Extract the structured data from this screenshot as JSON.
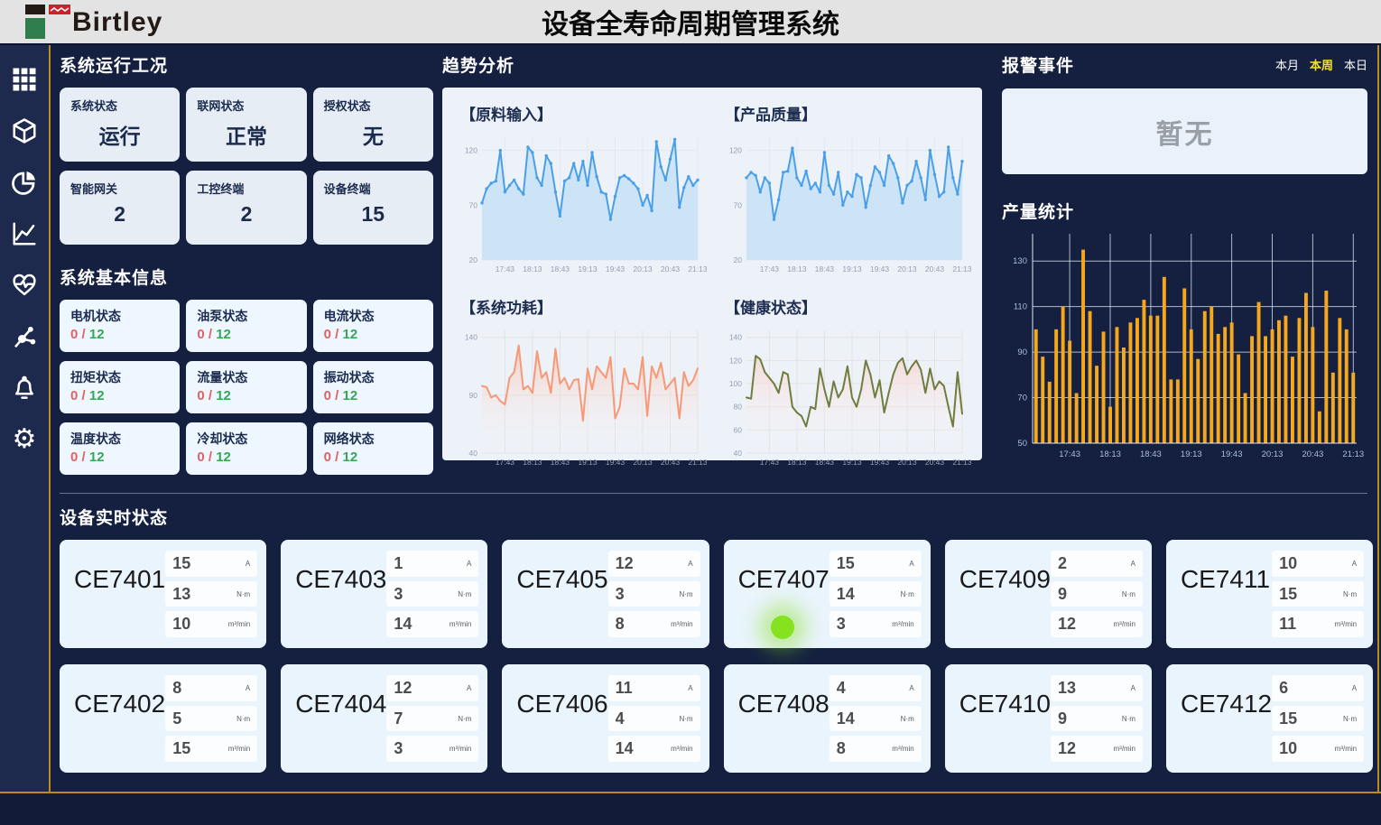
{
  "header": {
    "logo_text": "Birtley",
    "title": "设备全寿命周期管理系统"
  },
  "sidebar": {
    "icons": [
      "grid",
      "cube",
      "pie-chart",
      "line-chart",
      "health",
      "molecule",
      "bell",
      "gear"
    ]
  },
  "system_status": {
    "title": "系统运行工况",
    "cards": [
      {
        "label": "系统状态",
        "value": "运行"
      },
      {
        "label": "联网状态",
        "value": "正常"
      },
      {
        "label": "授权状态",
        "value": "无"
      },
      {
        "label": "智能网关",
        "value": "2"
      },
      {
        "label": "工控终端",
        "value": "2"
      },
      {
        "label": "设备终端",
        "value": "15"
      }
    ]
  },
  "system_info": {
    "title": "系统基本信息",
    "cards": [
      {
        "label": "电机状态",
        "current": "0",
        "separator": "/",
        "total": "12"
      },
      {
        "label": "油泵状态",
        "current": "0",
        "separator": "/",
        "total": "12"
      },
      {
        "label": "电流状态",
        "current": "0",
        "separator": "/",
        "total": "12"
      },
      {
        "label": "扭矩状态",
        "current": "0",
        "separator": "/",
        "total": "12"
      },
      {
        "label": "流量状态",
        "current": "0",
        "separator": "/",
        "total": "12"
      },
      {
        "label": "振动状态",
        "current": "0",
        "separator": "/",
        "total": "12"
      },
      {
        "label": "温度状态",
        "current": "0",
        "separator": "/",
        "total": "12"
      },
      {
        "label": "冷却状态",
        "current": "0",
        "separator": "/",
        "total": "12"
      },
      {
        "label": "网络状态",
        "current": "0",
        "separator": "/",
        "total": "12"
      }
    ]
  },
  "trend": {
    "title": "趋势分析"
  },
  "alarm": {
    "title": "报警事件",
    "tabs": [
      {
        "label": "本月",
        "active": false
      },
      {
        "label": "本周",
        "active": true
      },
      {
        "label": "本日",
        "active": false
      }
    ],
    "empty_text": "暂无"
  },
  "production": {
    "title": "产量统计"
  },
  "devices": {
    "title": "设备实时状态",
    "units": [
      "A",
      "N·m",
      "m³/min"
    ],
    "cards": [
      {
        "name": "CE7401",
        "values": [
          "15",
          "13",
          "10"
        ],
        "indicator": false
      },
      {
        "name": "CE7403",
        "values": [
          "1",
          "3",
          "14"
        ],
        "indicator": false
      },
      {
        "name": "CE7405",
        "values": [
          "12",
          "3",
          "8"
        ],
        "indicator": false
      },
      {
        "name": "CE7407",
        "values": [
          "15",
          "14",
          "3"
        ],
        "indicator": true
      },
      {
        "name": "CE7409",
        "values": [
          "2",
          "9",
          "12"
        ],
        "indicator": false
      },
      {
        "name": "CE7411",
        "values": [
          "10",
          "15",
          "11"
        ],
        "indicator": false
      },
      {
        "name": "CE7402",
        "values": [
          "8",
          "5",
          "15"
        ],
        "indicator": false
      },
      {
        "name": "CE7404",
        "values": [
          "12",
          "7",
          "3"
        ],
        "indicator": false
      },
      {
        "name": "CE7406",
        "values": [
          "11",
          "4",
          "14"
        ],
        "indicator": false
      },
      {
        "name": "CE7408",
        "values": [
          "4",
          "14",
          "8"
        ],
        "indicator": false
      },
      {
        "name": "CE7410",
        "values": [
          "13",
          "9",
          "12"
        ],
        "indicator": false
      },
      {
        "name": "CE7412",
        "values": [
          "6",
          "15",
          "10"
        ],
        "indicator": false
      }
    ]
  },
  "chart_data": [
    {
      "id": "raw-input",
      "type": "line",
      "title": "【原料输入】",
      "color": "#4aa0e8",
      "fill_type": "solid",
      "fill": "#cde4f7",
      "grid": "#e2e9f2",
      "markers": true,
      "ylim": [
        20,
        132
      ],
      "yticks": [
        20,
        70,
        120
      ],
      "x": [
        "17:43",
        "18:13",
        "18:43",
        "19:13",
        "19:43",
        "20:13",
        "20:43",
        "21:13"
      ],
      "values": [
        72,
        85,
        90,
        92,
        120,
        82,
        88,
        93,
        85,
        80,
        123,
        118,
        95,
        88,
        115,
        108,
        82,
        60,
        92,
        95,
        108,
        93,
        110,
        88,
        118,
        96,
        82,
        80,
        57,
        78,
        95,
        97,
        94,
        90,
        85,
        70,
        79,
        65,
        128,
        105,
        93,
        112,
        130,
        68,
        86,
        96,
        88,
        93
      ]
    },
    {
      "id": "product-quality",
      "type": "line",
      "title": "【产品质量】",
      "color": "#4aa0e8",
      "fill_type": "solid",
      "fill": "#cde4f7",
      "grid": "#e2e9f2",
      "markers": true,
      "ylim": [
        20,
        132
      ],
      "yticks": [
        20,
        70,
        120
      ],
      "x": [
        "17:43",
        "18:13",
        "18:43",
        "19:13",
        "19:43",
        "20:13",
        "20:43",
        "21:13"
      ],
      "values": [
        95,
        100,
        97,
        82,
        95,
        90,
        57,
        75,
        100,
        101,
        122,
        95,
        88,
        101,
        85,
        90,
        82,
        118,
        88,
        80,
        100,
        70,
        82,
        78,
        98,
        95,
        68,
        88,
        105,
        100,
        88,
        115,
        108,
        95,
        72,
        88,
        92,
        110,
        95,
        75,
        120,
        98,
        78,
        82,
        123,
        95,
        80,
        110
      ]
    },
    {
      "id": "power",
      "type": "line",
      "title": "【系统功耗】",
      "color": "#f79877",
      "fill_type": "gradient",
      "fill_from": "rgba(249,178,152,0.55)",
      "fill_to": "rgba(255,255,255,0)",
      "grid": "#e3e3e3",
      "markers": false,
      "ylim": [
        40,
        146
      ],
      "yticks": [
        40,
        90,
        140
      ],
      "x": [
        "17:43",
        "18:13",
        "18:43",
        "19:13",
        "19:43",
        "20:13",
        "20:43",
        "21:13"
      ],
      "values": [
        98,
        97,
        88,
        90,
        85,
        82,
        105,
        110,
        133,
        95,
        98,
        92,
        128,
        105,
        110,
        92,
        130,
        100,
        105,
        95,
        103,
        104,
        68,
        113,
        95,
        115,
        110,
        105,
        123,
        70,
        80,
        113,
        100,
        100,
        95,
        123,
        72,
        115,
        105,
        118,
        95,
        100,
        105,
        70,
        110,
        98,
        103,
        113
      ]
    },
    {
      "id": "health",
      "type": "line",
      "title": "【健康状态】",
      "color": "#6e7d3e",
      "fill_type": "gradient",
      "fill_from": "rgba(250,205,200,0.65)",
      "fill_to": "rgba(255,255,255,0)",
      "grid": "#e3e3e3",
      "markers": false,
      "ylim": [
        40,
        146
      ],
      "yticks": [
        40,
        60,
        80,
        100,
        120,
        140
      ],
      "x": [
        "17:43",
        "18:13",
        "18:43",
        "19:13",
        "19:43",
        "20:13",
        "20:43",
        "21:13"
      ],
      "values": [
        88,
        87,
        124,
        121,
        110,
        105,
        100,
        92,
        110,
        108,
        80,
        75,
        72,
        63,
        80,
        78,
        113,
        95,
        80,
        102,
        88,
        95,
        115,
        88,
        80,
        95,
        120,
        108,
        88,
        103,
        75,
        92,
        108,
        118,
        122,
        108,
        115,
        120,
        112,
        92,
        113,
        95,
        102,
        98,
        80,
        63,
        110,
        74
      ]
    },
    {
      "id": "production",
      "type": "bar",
      "title": "产量统计",
      "color": "#f6a81c",
      "grid": "rgba(226,235,250,0.75)",
      "ylim": [
        50,
        138
      ],
      "yticks": [
        50,
        70,
        90,
        110,
        130
      ],
      "x": [
        "17:43",
        "18:13",
        "18:43",
        "19:13",
        "19:43",
        "20:13",
        "20:43",
        "21:13"
      ],
      "values": [
        100,
        88,
        77,
        100,
        110,
        95,
        72,
        135,
        108,
        84,
        99,
        66,
        101,
        92,
        103,
        105,
        113,
        106,
        106,
        123,
        78,
        78,
        118,
        100,
        87,
        108,
        110,
        98,
        101,
        103,
        89,
        72,
        97,
        112,
        97,
        100,
        104,
        106,
        88,
        105,
        116,
        101,
        64,
        117,
        81,
        105,
        100,
        81
      ]
    }
  ]
}
